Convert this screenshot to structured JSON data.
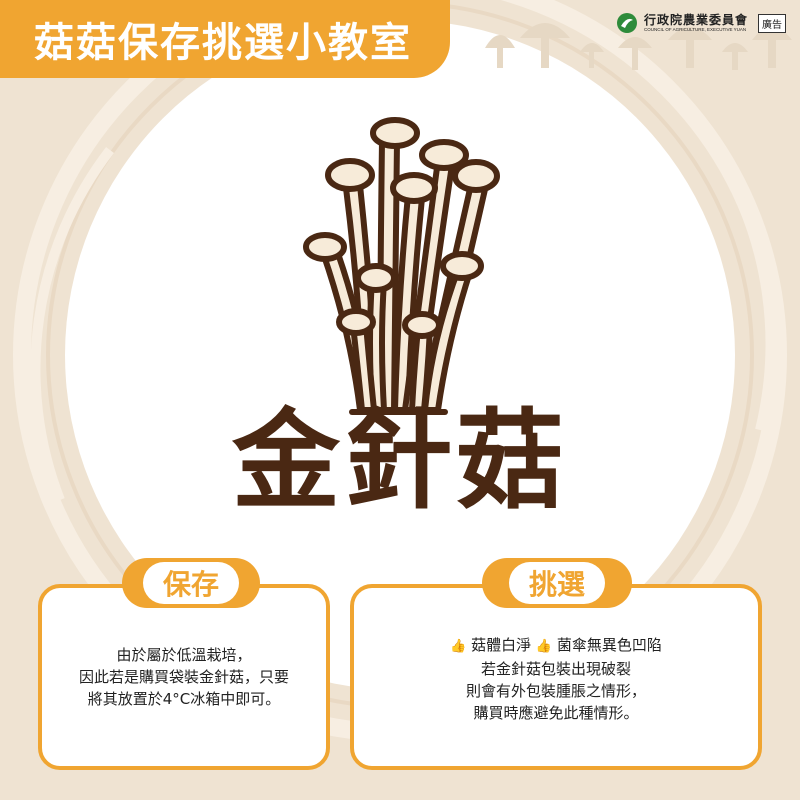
{
  "header": {
    "title": "菇菇保存挑選小教室"
  },
  "logo": {
    "name_cn": "行政院農業委員會",
    "name_en": "COUNCIL OF AGRICULTURE, EXECUTIVE YUAN",
    "ad_label": "廣告"
  },
  "main": {
    "title": "金針菇"
  },
  "storage": {
    "heading": "保存",
    "lines": [
      "由於屬於低溫栽培，",
      "因此若是購買袋裝金針菇，只要",
      "將其放置於4°C冰箱中即可。"
    ]
  },
  "selection": {
    "heading": "挑選",
    "tip1": "菇體白淨",
    "tip2": "菌傘無異色凹陷",
    "lines": [
      "若金針菇包裝出現破裂",
      "則會有外包裝腫脹之情形，",
      "購買時應避免此種情形。"
    ]
  },
  "colors": {
    "accent": "#f0a531",
    "background": "#efe3d2",
    "brown": "#4a2813",
    "mushroom_fill": "#f7ebd9"
  },
  "icons": {
    "thumb": "thumbs-up-icon",
    "illustration": "enoki-mushroom-illustration"
  }
}
